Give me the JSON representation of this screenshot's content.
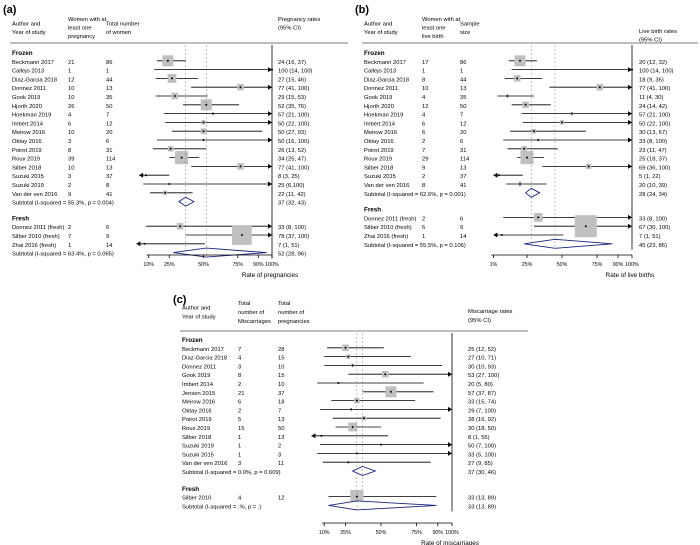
{
  "chart_data": [
    {
      "type": "forest",
      "panel_label": "(a)",
      "col_headers": [
        "Author and|Year of study",
        "Women with at|least one|pregnancy",
        "Total number|of women"
      ],
      "right_header": "Pregnancy rates|(95% CI)",
      "axis_label": "Rate of pregnancies",
      "ticks": [
        {
          "v": 10,
          "label": "10%"
        },
        {
          "v": 25,
          "label": "25%"
        },
        {
          "v": 50,
          "label": "50%"
        },
        {
          "v": 75,
          "label": "75%"
        },
        {
          "v": 90,
          "label": "90%"
        },
        {
          "v": 100,
          "label": "100%"
        }
      ],
      "groups": [
        {
          "name": "Frozen",
          "studies": [
            {
              "study": "Beckmann 2017",
              "events": "21",
              "total": "86",
              "ci_text": "24 (16, 37)",
              "est": 24,
              "lo": 16,
              "hi": 37,
              "box": 5
            },
            {
              "study": "Callejo 2013",
              "events": "1",
              "total": "1",
              "ci_text": "100 (14, 100)",
              "est": 100,
              "lo": 14,
              "hi": 100,
              "box": 0
            },
            {
              "study": "Diaz-Garcia 2018",
              "events": "12",
              "total": "44",
              "ci_text": "27 (15, 46)",
              "est": 27,
              "lo": 15,
              "hi": 46,
              "box": 4
            },
            {
              "study": "Donnez 2011",
              "events": "10",
              "total": "13",
              "ci_text": "77 (41, 100)",
              "est": 77,
              "lo": 41,
              "hi": 100,
              "box": 3
            },
            {
              "study": "Gook 2019",
              "events": "10",
              "total": "35",
              "ci_text": "29 (15, 53)",
              "est": 29,
              "lo": 15,
              "hi": 53,
              "box": 3
            },
            {
              "study": "Hjorth 2020",
              "events": "26",
              "total": "50",
              "ci_text": "52 (35, 76)",
              "est": 52,
              "lo": 35,
              "hi": 76,
              "box": 5
            },
            {
              "study": "Hoekman 2019",
              "events": "4",
              "total": "7",
              "ci_text": "57 (21, 100)",
              "est": 57,
              "lo": 21,
              "hi": 100,
              "box": 1
            },
            {
              "study": "Imbert 2014",
              "events": "6",
              "total": "12",
              "ci_text": "50 (22, 100)",
              "est": 50,
              "lo": 22,
              "hi": 100,
              "box": 2
            },
            {
              "study": "Meirow 2016",
              "events": "10",
              "total": "20",
              "ci_text": "50 (27, 93)",
              "est": 50,
              "lo": 27,
              "hi": 93,
              "box": 2.5
            },
            {
              "study": "Oktay 2016",
              "events": "3",
              "total": "6",
              "ci_text": "50 (16, 100)",
              "est": 50,
              "lo": 16,
              "hi": 100,
              "box": 1
            },
            {
              "study": "Poirot 2019",
              "events": "8",
              "total": "31",
              "ci_text": "26 (13, 52)",
              "est": 26,
              "lo": 13,
              "hi": 52,
              "box": 2.5
            },
            {
              "study": "Roux 2019",
              "events": "39",
              "total": "114",
              "ci_text": "34 (25, 47)",
              "est": 34,
              "lo": 25,
              "hi": 47,
              "box": 6
            },
            {
              "study": "Silber 2018",
              "events": "10",
              "total": "13",
              "ci_text": "77 (41, 100)",
              "est": 77,
              "lo": 41,
              "hi": 100,
              "box": 3
            },
            {
              "study": "Suzuki 2015",
              "events": "3",
              "total": "37",
              "ci_text": "8 (3, 25)",
              "est": 8,
              "lo": 3,
              "hi": 25,
              "box": 1
            },
            {
              "study": "Suzuki 2019",
              "events": "2",
              "total": "8",
              "ci_text": "25 (6,100)",
              "est": 25,
              "lo": 6,
              "hi": 100,
              "box": 1
            },
            {
              "study": "Van der ven 2016",
              "events": "9",
              "total": "41",
              "ci_text": "22 (11, 42)",
              "est": 22,
              "lo": 11,
              "hi": 42,
              "box": 2
            }
          ],
          "subtotal": {
            "label": "Subtotal  (I-squared = 55.3%, p = 0.004)",
            "ci_text": "37 (32, 43)",
            "est": 37,
            "lo": 32,
            "hi": 43
          }
        },
        {
          "name": "Fresh",
          "studies": [
            {
              "study": "Donnez 2011 (fresh)",
              "events": "2",
              "total": "6",
              "ci_text": "33 (8, 100)",
              "est": 33,
              "lo": 8,
              "hi": 100,
              "box": 3
            },
            {
              "study": "Silber 2010 (fresh)",
              "events": "7",
              "total": "9",
              "ci_text": "78 (37, 100)",
              "est": 78,
              "lo": 37,
              "hi": 100,
              "box": 9
            },
            {
              "study": "Zhai 2016 (fresh)",
              "events": "1",
              "total": "14",
              "ci_text": "7 (1, 51)",
              "est": 7,
              "lo": 1,
              "hi": 51,
              "box": 0
            }
          ],
          "subtotal": {
            "label": "Subtotal  (I-squared = 63.4%, p = 0.065)",
            "ci_text": "52 (28, 96)",
            "est": 52,
            "lo": 28,
            "hi": 96
          }
        }
      ]
    },
    {
      "type": "forest",
      "panel_label": "(b)",
      "col_headers": [
        "Author and|Year of study",
        "Women with at|least one|live birth",
        "Sample|size"
      ],
      "right_header": "Live birth rates|(95% CI)",
      "axis_label": "Rate of live births",
      "ticks": [
        {
          "v": 1,
          "label": "1%"
        },
        {
          "v": 25,
          "label": "25%"
        },
        {
          "v": 50,
          "label": "50%"
        },
        {
          "v": 75,
          "label": "75%"
        },
        {
          "v": 90,
          "label": "90%"
        },
        {
          "v": 100,
          "label": "100%"
        }
      ],
      "groups": [
        {
          "name": "Frozen",
          "studies": [
            {
              "study": "Beckmann 2017",
              "events": "17",
              "total": "86",
              "ci_text": "20 (12, 32)",
              "est": 20,
              "lo": 12,
              "hi": 32,
              "box": 5
            },
            {
              "study": "Callejo 2013",
              "events": "1",
              "total": "1",
              "ci_text": "100 (14, 100)",
              "est": 100,
              "lo": 14,
              "hi": 100,
              "box": 0
            },
            {
              "study": "Diaz-Garcia 2018",
              "events": "8",
              "total": "44",
              "ci_text": "18 (9, 36)",
              "est": 18,
              "lo": 9,
              "hi": 36,
              "box": 3
            },
            {
              "study": "Donnez 2011",
              "events": "10",
              "total": "13",
              "ci_text": "77 (41, 100)",
              "est": 77,
              "lo": 41,
              "hi": 100,
              "box": 3
            },
            {
              "study": "Gook 2019",
              "events": "4",
              "total": "35",
              "ci_text": "11 (4, 30)",
              "est": 11,
              "lo": 4,
              "hi": 30,
              "box": 1.5
            },
            {
              "study": "Hjorth 2020",
              "events": "12",
              "total": "50",
              "ci_text": "24 (14, 42)",
              "est": 24,
              "lo": 14,
              "hi": 42,
              "box": 3
            },
            {
              "study": "Hoekman 2019",
              "events": "4",
              "total": "7",
              "ci_text": "57 (21, 100)",
              "est": 57,
              "lo": 21,
              "hi": 100,
              "box": 1.5
            },
            {
              "study": "Imbert 2014",
              "events": "6",
              "total": "12",
              "ci_text": "50 (22, 100)",
              "est": 50,
              "lo": 22,
              "hi": 100,
              "box": 2
            },
            {
              "study": "Meirow 2016",
              "events": "6",
              "total": "20",
              "ci_text": "30 (13, 67)",
              "est": 30,
              "lo": 13,
              "hi": 67,
              "box": 2
            },
            {
              "study": "Oktay 2016",
              "events": "2",
              "total": "6",
              "ci_text": "33 (8, 100)",
              "est": 33,
              "lo": 8,
              "hi": 100,
              "box": 1
            },
            {
              "study": "Poirot 2019",
              "events": "7",
              "total": "31",
              "ci_text": "23 (11, 47)",
              "est": 23,
              "lo": 11,
              "hi": 47,
              "box": 2.5
            },
            {
              "study": "Roux 2019",
              "events": "29",
              "total": "114",
              "ci_text": "25 (18, 37)",
              "est": 25,
              "lo": 18,
              "hi": 37,
              "box": 6
            },
            {
              "study": "Silber 2018",
              "events": "9",
              "total": "13",
              "ci_text": "69 (36, 100)",
              "est": 69,
              "lo": 36,
              "hi": 100,
              "box": 2.5
            },
            {
              "study": "Suzuki 2015",
              "events": "2",
              "total": "37",
              "ci_text": "5 (1, 22)",
              "est": 5,
              "lo": 1,
              "hi": 22,
              "box": 1
            },
            {
              "study": "Van der ven 2016",
              "events": "8",
              "total": "41",
              "ci_text": "20 (10, 39)",
              "est": 20,
              "lo": 10,
              "hi": 39,
              "box": 2
            }
          ],
          "subtotal": {
            "label": "Subtotal  (I-squared = 62.6%, p = 0.001)",
            "ci_text": "28 (24, 34)",
            "est": 28,
            "lo": 24,
            "hi": 34
          }
        },
        {
          "name": "Fresh",
          "studies": [
            {
              "study": "Donnez 2011 (fresh)",
              "events": "2",
              "total": "6",
              "ci_text": "33 (8, 100)",
              "est": 33,
              "lo": 8,
              "hi": 100,
              "box": 4
            },
            {
              "study": "Silber 2010 (fresh)",
              "events": "6",
              "total": "9",
              "ci_text": "67 (30, 100)",
              "est": 67,
              "lo": 30,
              "hi": 100,
              "box": 10
            },
            {
              "study": "Zhai 2016 (fresh)",
              "events": "1",
              "total": "14",
              "ci_text": "7 (1, 51)",
              "est": 7,
              "lo": 1,
              "hi": 51,
              "box": 0
            }
          ],
          "subtotal": {
            "label": "Subtotal  (I-squared = 55.5%, p = 0.106)",
            "ci_text": "45 (23, 86)",
            "est": 45,
            "lo": 23,
            "hi": 86
          }
        }
      ]
    },
    {
      "type": "forest",
      "panel_label": "(c)",
      "col_headers": [
        "Author and|Year of study",
        "Total|number of|Miscarriages",
        "Total|number of|pregnancies"
      ],
      "right_header": "Miscarriage rates|(95% CI)",
      "axis_label": "Rate of miscarriages",
      "ticks": [
        {
          "v": 10,
          "label": "10%"
        },
        {
          "v": 25,
          "label": "25%"
        },
        {
          "v": 50,
          "label": "50%"
        },
        {
          "v": 75,
          "label": "75%"
        },
        {
          "v": 90,
          "label": "90%"
        },
        {
          "v": 100,
          "label": "100%"
        }
      ],
      "groups": [
        {
          "name": "Frozen",
          "studies": [
            {
              "study": "Beckmann 2017",
              "events": "7",
              "total": "28",
              "ci_text": "25 (12, 52)",
              "est": 25,
              "lo": 12,
              "hi": 52,
              "box": 3
            },
            {
              "study": "Diaz-Garcia 2018",
              "events": "4",
              "total": "15",
              "ci_text": "27 (10, 71)",
              "est": 27,
              "lo": 10,
              "hi": 71,
              "box": 2
            },
            {
              "study": "Donnez 2011",
              "events": "3",
              "total": "10",
              "ci_text": "30 (10, 93)",
              "est": 30,
              "lo": 10,
              "hi": 93,
              "box": 1.5
            },
            {
              "study": "Gook 2019",
              "events": "8",
              "total": "15",
              "ci_text": "53 (27, 100)",
              "est": 53,
              "lo": 27,
              "hi": 100,
              "box": 3
            },
            {
              "study": "Imbert 2014",
              "events": "2",
              "total": "10",
              "ci_text": "20 (5, 80)",
              "est": 20,
              "lo": 5,
              "hi": 80,
              "box": 1
            },
            {
              "study": "Jensen 2015",
              "events": "21",
              "total": "37",
              "ci_text": "57 (37, 87)",
              "est": 57,
              "lo": 37,
              "hi": 87,
              "box": 5
            },
            {
              "study": "Meirow 2016",
              "events": "6",
              "total": "18",
              "ci_text": "33 (15, 74)",
              "est": 33,
              "lo": 15,
              "hi": 74,
              "box": 2.5
            },
            {
              "study": "Oktay 2016",
              "events": "2",
              "total": "7",
              "ci_text": "29 (7, 100)",
              "est": 29,
              "lo": 7,
              "hi": 100,
              "box": 1
            },
            {
              "study": "Poirot 2019",
              "events": "5",
              "total": "13",
              "ci_text": "38 (16, 92)",
              "est": 38,
              "lo": 16,
              "hi": 92,
              "box": 2
            },
            {
              "study": "Roux 2019",
              "events": "15",
              "total": "50",
              "ci_text": "30 (18, 50)",
              "est": 30,
              "lo": 18,
              "hi": 50,
              "box": 4
            },
            {
              "study": "Silber 2018",
              "events": "1",
              "total": "13",
              "ci_text": "8 (1, 55)",
              "est": 8,
              "lo": 1,
              "hi": 55,
              "box": 0
            },
            {
              "study": "Suzuki 2019",
              "events": "1",
              "total": "2",
              "ci_text": "50 (7, 100)",
              "est": 50,
              "lo": 7,
              "hi": 100,
              "box": 0
            },
            {
              "study": "Suzuki 2015",
              "events": "1",
              "total": "3",
              "ci_text": "33 (5, 100)",
              "est": 33,
              "lo": 5,
              "hi": 100,
              "box": 0
            },
            {
              "study": "Van der ven 2016",
              "events": "3",
              "total": "11",
              "ci_text": "27 (9, 85)",
              "est": 27,
              "lo": 9,
              "hi": 85,
              "box": 1
            }
          ],
          "subtotal": {
            "label": "Subtotal  (I-squared = 0.0%, p = 0.609)",
            "ci_text": "37 (30, 46)",
            "est": 37,
            "lo": 30,
            "hi": 46
          }
        },
        {
          "name": "Fresh",
          "studies": [
            {
              "study": "Silber 2010",
              "events": "4",
              "total": "12",
              "ci_text": "33 (13, 89)",
              "est": 33,
              "lo": 13,
              "hi": 89,
              "box": 6
            }
          ],
          "subtotal": {
            "label": "Subtotal  (I-squared = .%, p = .)",
            "ci_text": "33 (13, 89)",
            "est": 33,
            "lo": 13,
            "hi": 89
          }
        }
      ]
    }
  ],
  "colors": {
    "box": "#c0c0c0",
    "line": "#000000",
    "diamond": "#1a237e",
    "reference": "#000000"
  }
}
